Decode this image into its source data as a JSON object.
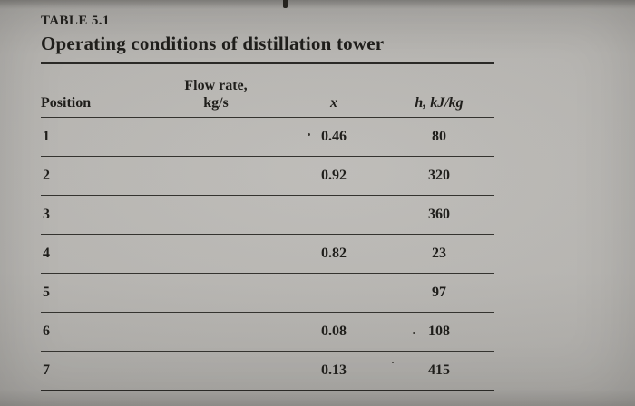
{
  "table": {
    "label": "TABLE 5.1",
    "title": "Operating conditions of distillation tower",
    "header": {
      "position": "Position",
      "flow_rate_line1": "Flow rate,",
      "flow_rate_line2": "kg/s",
      "x": "x",
      "h": "h, kJ/kg"
    },
    "rows": [
      {
        "position": "1",
        "flow_rate": "",
        "x": "0.46",
        "h": "80"
      },
      {
        "position": "2",
        "flow_rate": "",
        "x": "0.92",
        "h": "320"
      },
      {
        "position": "3",
        "flow_rate": "",
        "x": "",
        "h": "360"
      },
      {
        "position": "4",
        "flow_rate": "",
        "x": "0.82",
        "h": "23"
      },
      {
        "position": "5",
        "flow_rate": "",
        "x": "",
        "h": "97"
      },
      {
        "position": "6",
        "flow_rate": "",
        "x": "0.08",
        "h": "108"
      },
      {
        "position": "7",
        "flow_rate": "",
        "x": "0.13",
        "h": "415"
      }
    ]
  }
}
